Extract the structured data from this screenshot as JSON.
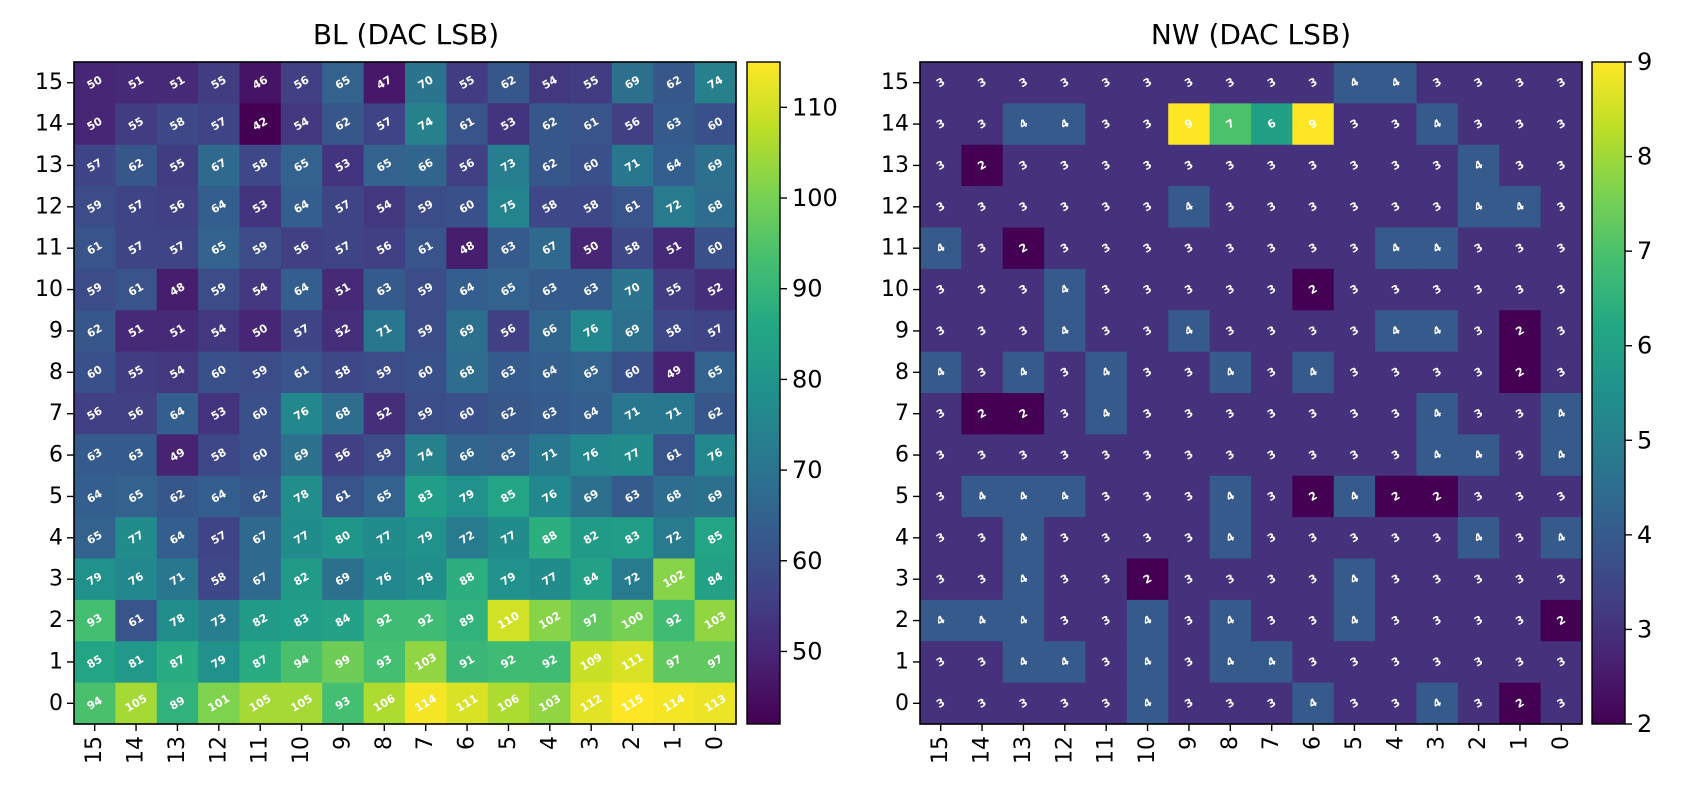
{
  "chart_data": [
    {
      "type": "heatmap",
      "title": "BL (DAC LSB)",
      "x_tick_labels": [
        15,
        14,
        13,
        12,
        11,
        10,
        9,
        8,
        7,
        6,
        5,
        4,
        3,
        2,
        1,
        0
      ],
      "y_tick_labels": [
        15,
        14,
        13,
        12,
        11,
        10,
        9,
        8,
        7,
        6,
        5,
        4,
        3,
        2,
        1,
        0
      ],
      "colormap": "viridis",
      "colorbar": {
        "range": [
          42,
          115
        ],
        "ticks": [
          50,
          60,
          70,
          80,
          90,
          100,
          110
        ]
      },
      "values": [
        [
          50,
          51,
          51,
          55,
          46,
          56,
          65,
          47,
          70,
          55,
          62,
          54,
          55,
          69,
          62,
          74
        ],
        [
          50,
          55,
          58,
          57,
          42,
          54,
          62,
          57,
          74,
          61,
          53,
          62,
          61,
          56,
          63,
          60
        ],
        [
          57,
          62,
          55,
          67,
          58,
          65,
          53,
          65,
          66,
          56,
          73,
          62,
          60,
          71,
          64,
          69
        ],
        [
          59,
          57,
          56,
          64,
          53,
          64,
          57,
          54,
          59,
          60,
          75,
          58,
          58,
          61,
          72,
          68
        ],
        [
          61,
          57,
          57,
          65,
          59,
          56,
          57,
          56,
          61,
          48,
          63,
          67,
          50,
          58,
          51,
          60
        ],
        [
          59,
          61,
          48,
          59,
          54,
          64,
          51,
          63,
          59,
          64,
          65,
          63,
          63,
          70,
          55,
          52
        ],
        [
          62,
          51,
          51,
          54,
          50,
          57,
          52,
          71,
          59,
          69,
          56,
          66,
          76,
          69,
          58,
          57
        ],
        [
          60,
          55,
          54,
          60,
          59,
          61,
          58,
          59,
          60,
          68,
          63,
          64,
          65,
          60,
          49,
          65
        ],
        [
          56,
          56,
          64,
          53,
          60,
          76,
          68,
          52,
          59,
          60,
          62,
          63,
          64,
          71,
          71,
          62
        ],
        [
          63,
          63,
          49,
          58,
          60,
          69,
          56,
          59,
          74,
          66,
          65,
          71,
          76,
          77,
          61,
          76
        ],
        [
          64,
          65,
          62,
          64,
          62,
          78,
          61,
          65,
          83,
          79,
          85,
          76,
          69,
          63,
          68,
          69
        ],
        [
          65,
          77,
          64,
          57,
          67,
          77,
          80,
          77,
          79,
          72,
          77,
          88,
          82,
          83,
          72,
          85
        ],
        [
          79,
          76,
          71,
          58,
          67,
          82,
          69,
          76,
          78,
          88,
          79,
          77,
          84,
          72,
          102,
          84
        ],
        [
          93,
          61,
          78,
          73,
          82,
          83,
          84,
          92,
          92,
          89,
          110,
          102,
          97,
          100,
          92,
          103
        ],
        [
          85,
          81,
          87,
          79,
          87,
          94,
          99,
          93,
          103,
          91,
          92,
          92,
          109,
          111,
          97,
          97
        ],
        [
          94,
          105,
          89,
          101,
          105,
          105,
          93,
          106,
          114,
          111,
          106,
          103,
          112,
          115,
          114,
          113
        ]
      ]
    },
    {
      "type": "heatmap",
      "title": "NW (DAC LSB)",
      "x_tick_labels": [
        15,
        14,
        13,
        12,
        11,
        10,
        9,
        8,
        7,
        6,
        5,
        4,
        3,
        2,
        1,
        0
      ],
      "y_tick_labels": [
        15,
        14,
        13,
        12,
        11,
        10,
        9,
        8,
        7,
        6,
        5,
        4,
        3,
        2,
        1,
        0
      ],
      "colormap": "viridis",
      "colorbar": {
        "range": [
          2,
          9
        ],
        "ticks": [
          2,
          3,
          4,
          5,
          6,
          7,
          8,
          9
        ]
      },
      "values": [
        [
          3,
          3,
          3,
          3,
          3,
          3,
          3,
          3,
          3,
          3,
          4,
          4,
          3,
          3,
          3,
          3
        ],
        [
          3,
          3,
          4,
          4,
          3,
          3,
          9,
          7,
          6,
          9,
          3,
          3,
          4,
          3,
          3,
          3
        ],
        [
          3,
          2,
          3,
          3,
          3,
          3,
          3,
          3,
          3,
          3,
          3,
          3,
          3,
          4,
          3,
          3
        ],
        [
          3,
          3,
          3,
          3,
          3,
          3,
          4,
          3,
          3,
          3,
          3,
          3,
          3,
          4,
          4,
          3
        ],
        [
          4,
          3,
          2,
          3,
          3,
          3,
          3,
          3,
          3,
          3,
          3,
          4,
          4,
          3,
          3,
          3
        ],
        [
          3,
          3,
          3,
          4,
          3,
          3,
          3,
          3,
          3,
          2,
          3,
          3,
          3,
          3,
          3,
          3
        ],
        [
          3,
          3,
          3,
          4,
          3,
          3,
          4,
          3,
          3,
          3,
          3,
          4,
          4,
          3,
          2,
          3
        ],
        [
          4,
          3,
          4,
          3,
          4,
          3,
          3,
          4,
          3,
          4,
          3,
          3,
          3,
          3,
          2,
          3
        ],
        [
          3,
          2,
          2,
          3,
          4,
          3,
          3,
          3,
          3,
          3,
          3,
          3,
          4,
          3,
          3,
          4
        ],
        [
          3,
          3,
          3,
          3,
          3,
          3,
          3,
          3,
          3,
          3,
          3,
          3,
          4,
          4,
          3,
          4
        ],
        [
          3,
          4,
          4,
          4,
          3,
          3,
          3,
          4,
          3,
          2,
          4,
          2,
          2,
          3,
          3,
          3
        ],
        [
          3,
          3,
          4,
          3,
          3,
          3,
          3,
          4,
          3,
          3,
          3,
          3,
          3,
          4,
          3,
          4
        ],
        [
          3,
          3,
          4,
          3,
          3,
          2,
          3,
          3,
          3,
          3,
          4,
          3,
          3,
          3,
          3,
          3
        ],
        [
          4,
          4,
          4,
          3,
          3,
          4,
          3,
          4,
          3,
          3,
          4,
          3,
          3,
          3,
          3,
          2
        ],
        [
          3,
          3,
          4,
          4,
          3,
          4,
          3,
          4,
          4,
          3,
          3,
          3,
          3,
          3,
          3,
          3
        ],
        [
          3,
          3,
          3,
          3,
          3,
          4,
          3,
          3,
          3,
          4,
          3,
          3,
          4,
          3,
          2,
          3
        ]
      ]
    }
  ]
}
